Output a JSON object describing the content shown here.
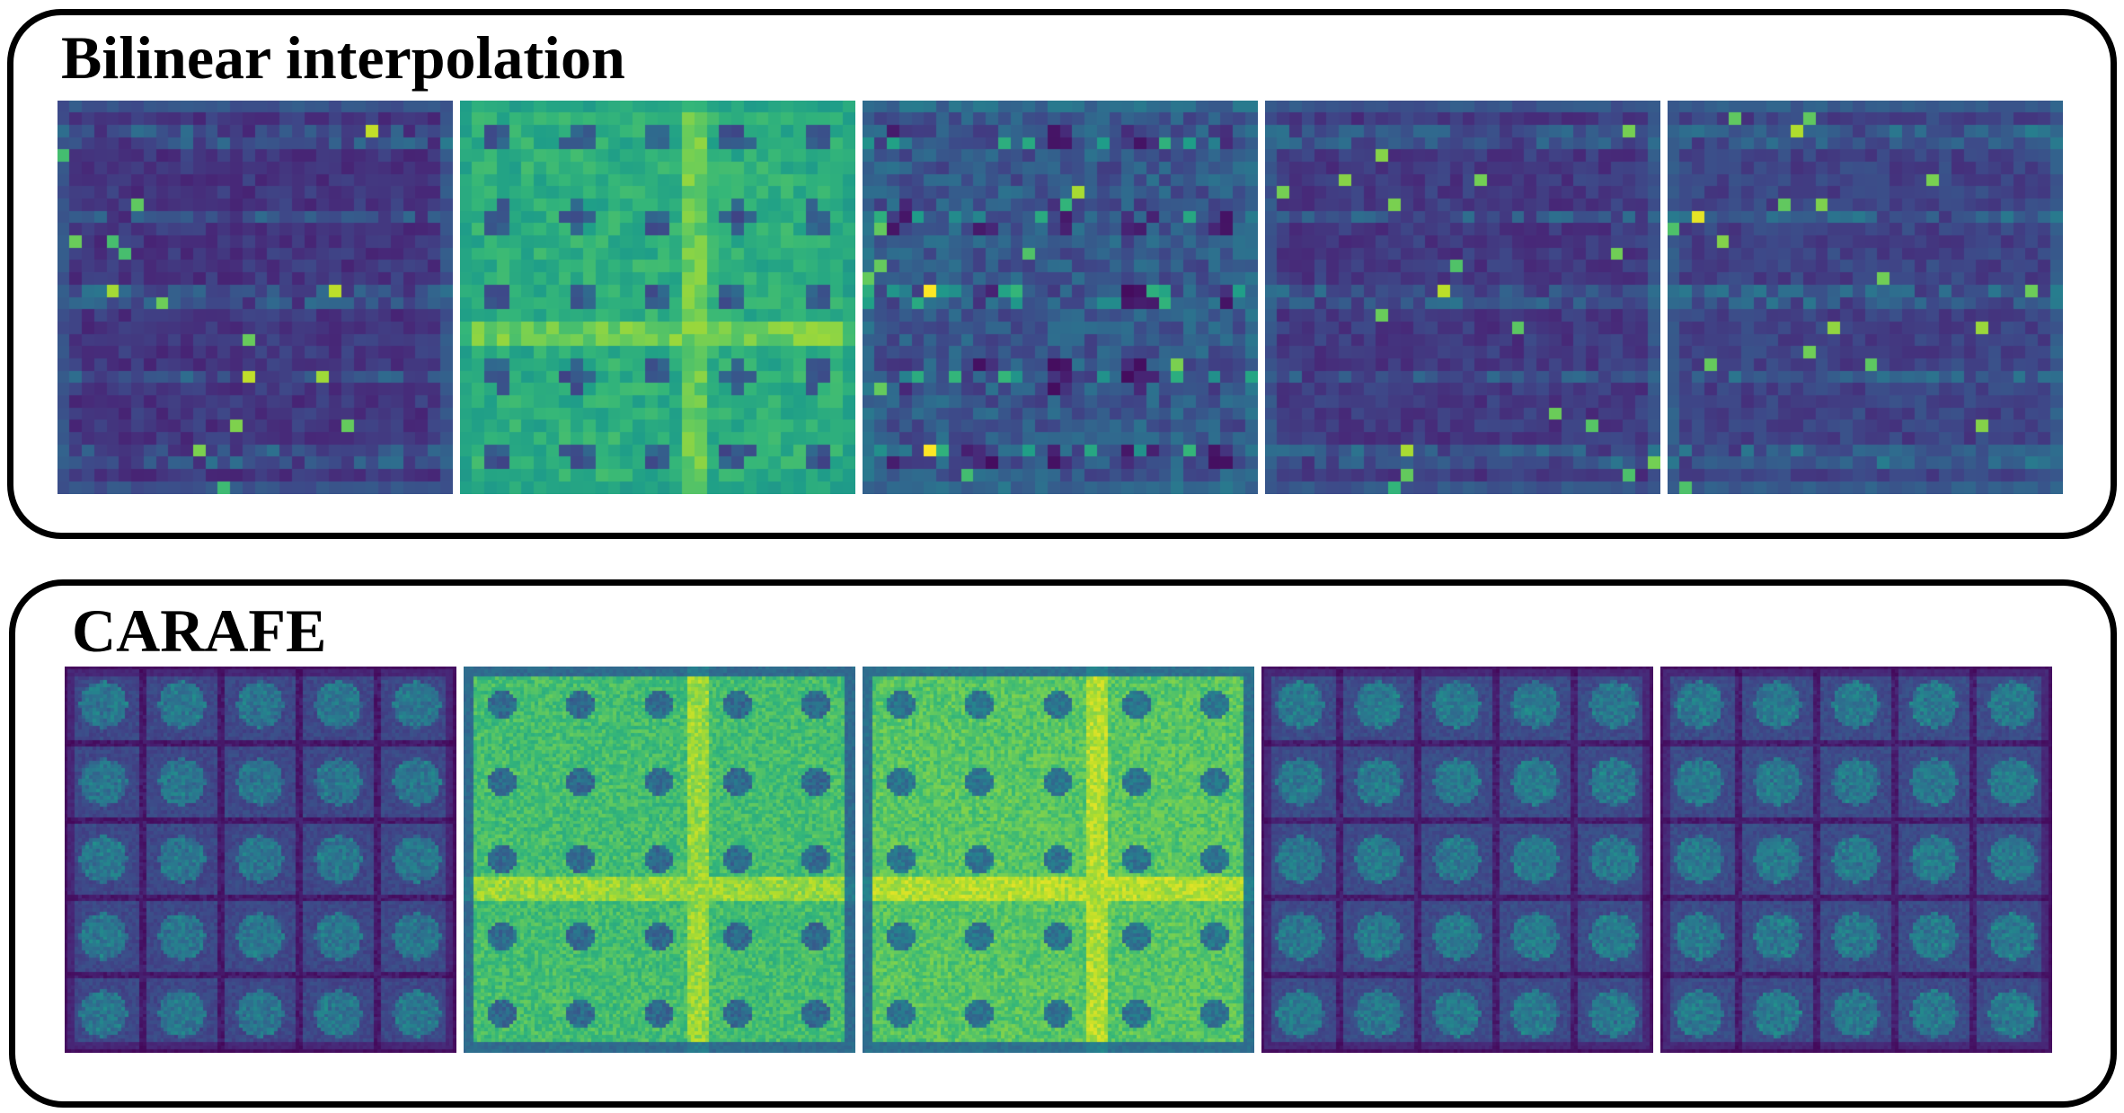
{
  "panels": [
    {
      "id": "bilinear",
      "title": "Bilinear interpolation",
      "maps": [
        {
          "index": 1,
          "style": "coarse",
          "brightness": 0.2,
          "grid": "rows",
          "seed": 11
        },
        {
          "index": 2,
          "style": "coarse",
          "brightness": 0.55,
          "grid": "holes",
          "seed": 23
        },
        {
          "index": 3,
          "style": "coarse",
          "brightness": 0.3,
          "grid": "mixed",
          "seed": 37
        },
        {
          "index": 4,
          "style": "coarse",
          "brightness": 0.22,
          "grid": "rows",
          "seed": 41
        },
        {
          "index": 5,
          "style": "coarse",
          "brightness": 0.28,
          "grid": "rows",
          "seed": 53
        }
      ]
    },
    {
      "id": "carafe",
      "title": "CARAFE",
      "maps": [
        {
          "index": 1,
          "style": "fine",
          "brightness": 0.3,
          "grid": "blobs",
          "seed": 61
        },
        {
          "index": 2,
          "style": "fine",
          "brightness": 0.62,
          "grid": "holes",
          "seed": 73
        },
        {
          "index": 3,
          "style": "fine",
          "brightness": 0.66,
          "grid": "holes",
          "seed": 89
        },
        {
          "index": 4,
          "style": "fine",
          "brightness": 0.32,
          "grid": "blobs",
          "seed": 97
        },
        {
          "index": 5,
          "style": "fine",
          "brightness": 0.32,
          "grid": "blobs",
          "seed": 101
        }
      ]
    }
  ],
  "colormap": [
    "#440154",
    "#482878",
    "#3e4989",
    "#31688e",
    "#26828e",
    "#1f9e89",
    "#35b779",
    "#6ece58",
    "#b5de2b",
    "#fde725"
  ]
}
